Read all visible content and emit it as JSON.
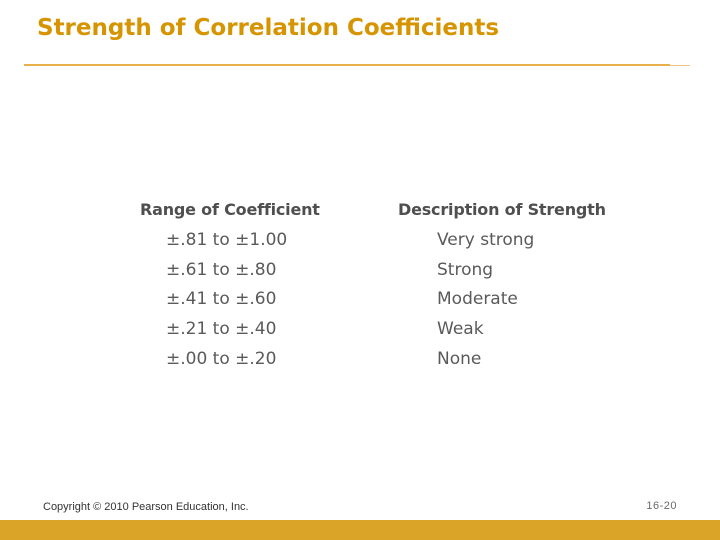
{
  "slide": {
    "title": "Strength of Correlation Coefficients",
    "accent_color": "#d69400",
    "bar_color": "#d9a428"
  },
  "table": {
    "headers": {
      "range": "Range of Coefficient",
      "description": "Description of Strength"
    },
    "rows": [
      {
        "range": "±.81 to ±1.00",
        "description": "Very strong"
      },
      {
        "range": "±.61 to ±.80",
        "description": "Strong"
      },
      {
        "range": "±.41 to ±.60",
        "description": "Moderate"
      },
      {
        "range": "±.21 to ±.40",
        "description": "Weak"
      },
      {
        "range": "±.00 to ±.20",
        "description": "None"
      }
    ]
  },
  "footer": {
    "copyright": "Copyright © 2010 Pearson Education, Inc.",
    "page": "16-20"
  }
}
